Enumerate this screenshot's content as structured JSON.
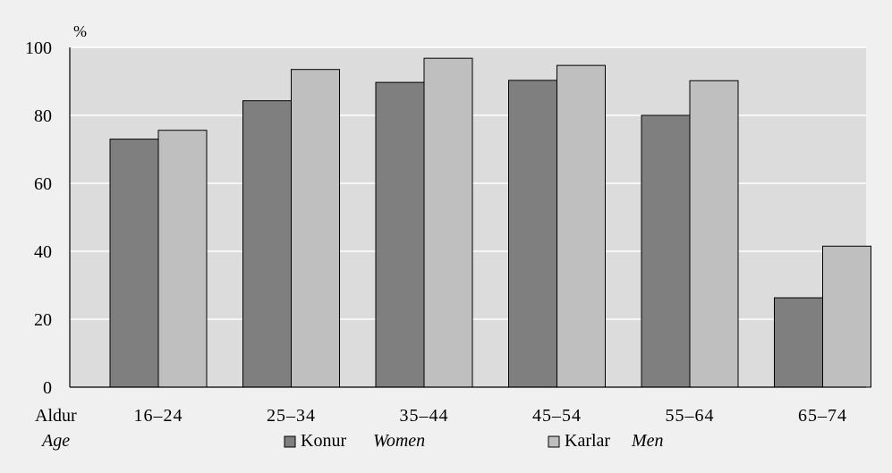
{
  "chart_data": {
    "type": "bar",
    "unit_label": "%",
    "xlabel_is": "Aldur",
    "xlabel_en": "Age",
    "categories": [
      "16–24",
      "25–34",
      "35–44",
      "45–54",
      "55–64",
      "65–74"
    ],
    "series": [
      {
        "name_is": "Konur",
        "name_en": "Women",
        "color": "#7f7f7f",
        "values": [
          73,
          84.3,
          89.7,
          90.3,
          80,
          26.3
        ]
      },
      {
        "name_is": "Karlar",
        "name_en": "Men",
        "color": "#bfbfbf",
        "values": [
          75.6,
          93.5,
          96.8,
          94.7,
          90.2,
          41.5
        ]
      }
    ],
    "yticks": [
      "0",
      "20",
      "40",
      "60",
      "80",
      "100"
    ],
    "ylim": [
      0,
      100
    ],
    "grid": true,
    "legend_position": "bottom-center",
    "plot_background": "#dcdcdc",
    "figure_background": "#f0f0f0"
  }
}
